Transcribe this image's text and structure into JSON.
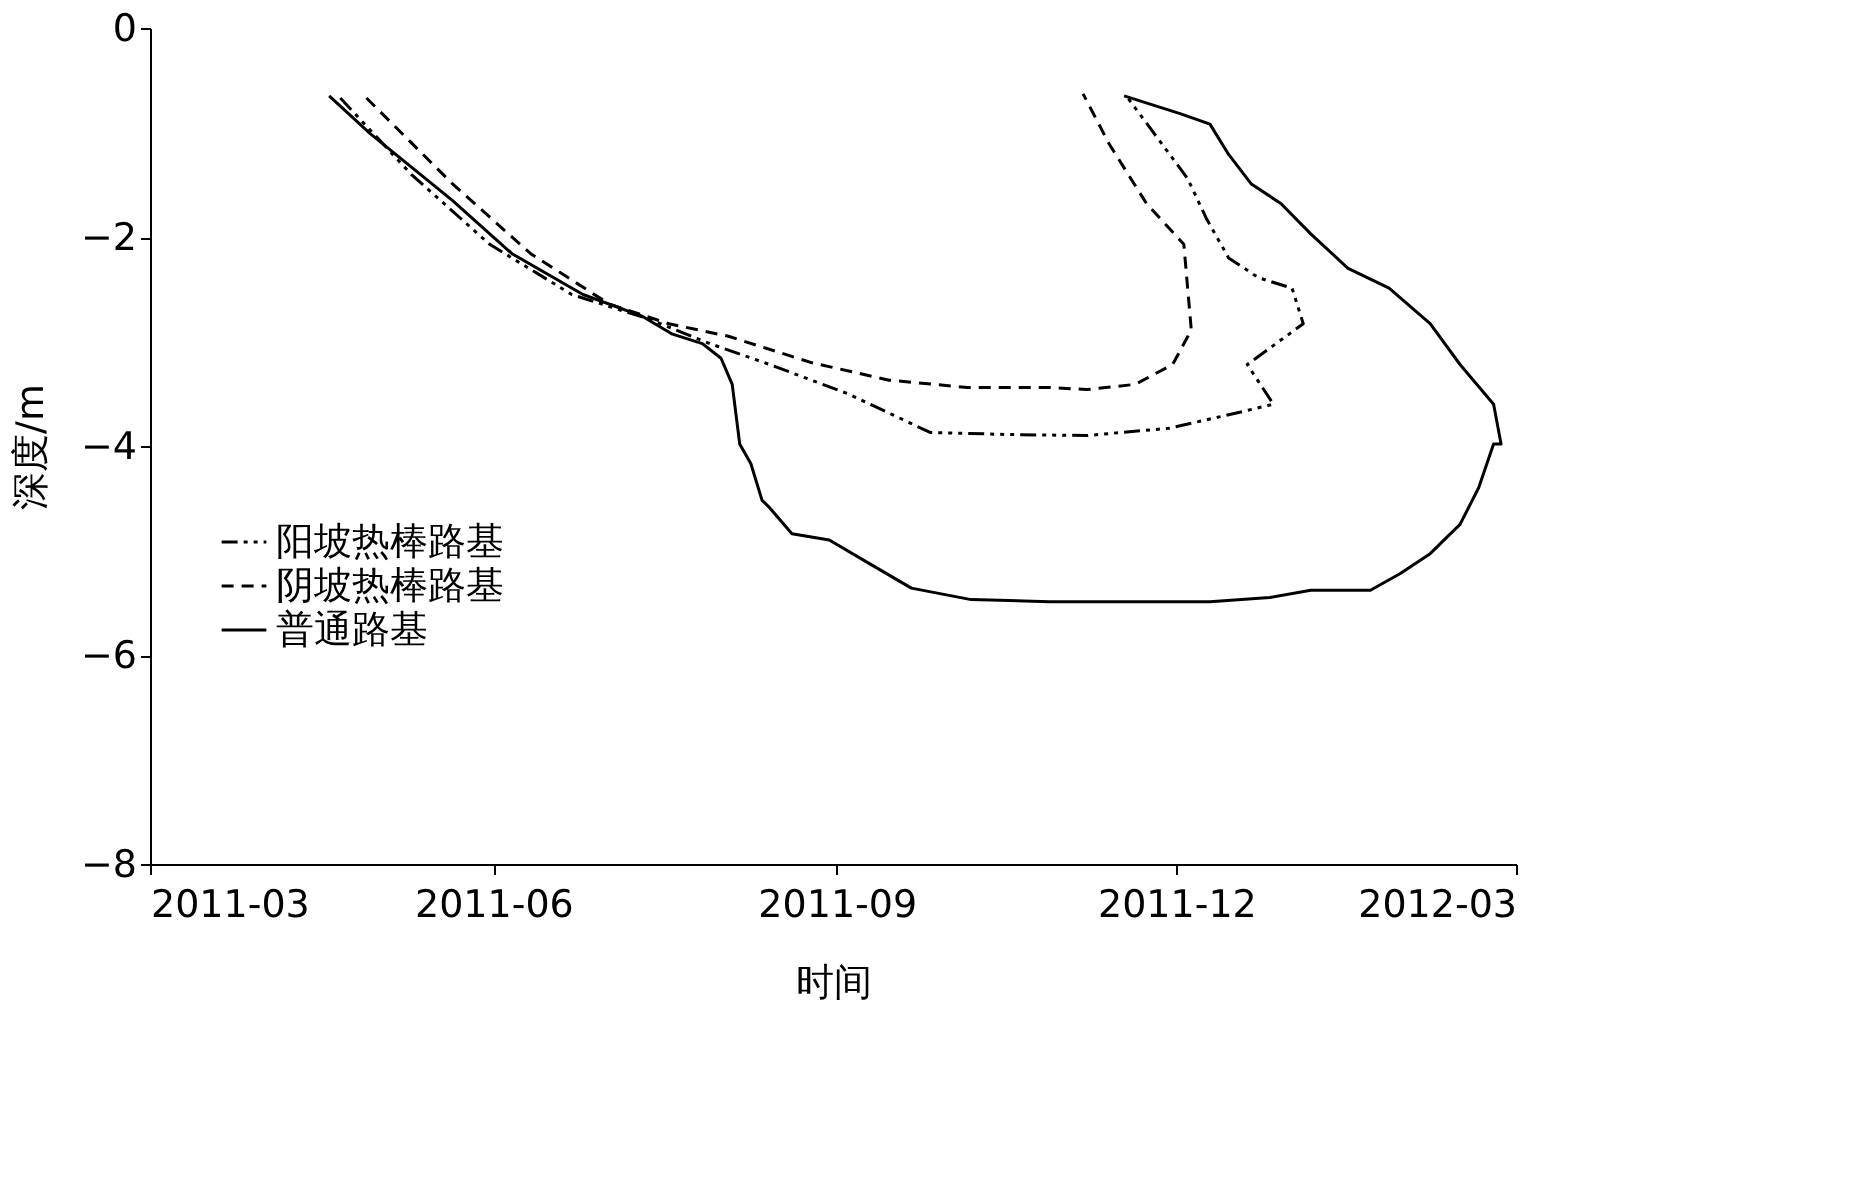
{
  "chart_data": {
    "type": "line",
    "xlabel": "时间",
    "ylabel": "深度/m",
    "xlim": [
      "2011-03",
      "2012-03"
    ],
    "xticks": [
      "2011-03",
      "2011-06",
      "2011-09",
      "2011-12",
      "2012-03"
    ],
    "ylim": [
      -8,
      0
    ],
    "yticks": [
      0,
      -2,
      -4,
      -6,
      -8
    ],
    "grid": false,
    "legend": "left",
    "marker": "none",
    "series": [
      {
        "name": "阳坡热棒路基",
        "color": "#000000",
        "line_style": "dashdotdot",
        "x": [
          "2011-04-21",
          "2011-05-10",
          "2011-05-31",
          "2011-06-22",
          "2011-07-13",
          "2011-07-29",
          "2011-08-14",
          "2011-09-04",
          "2011-09-26",
          "2011-10-17",
          "2011-11-07",
          "2011-11-29",
          "2011-12-09",
          "2011-12-20",
          "2011-12-27",
          "2011-12-20",
          "2012-01-04",
          "2012-01-01",
          "2011-12-23",
          "2011-12-15",
          "2011-12-09",
          "2011-12-04",
          "2011-11-18"
        ],
        "values": [
          -0.67,
          -1.4,
          -2.07,
          -2.55,
          -2.79,
          -3.02,
          -3.22,
          -3.5,
          -3.87,
          -3.89,
          -3.9,
          -3.83,
          -3.75,
          -3.66,
          -3.6,
          -3.22,
          -2.83,
          -2.49,
          -2.39,
          -2.2,
          -1.82,
          -1.44,
          -0.67
        ]
      },
      {
        "name": "阴坡热棒路基",
        "color": "#000000",
        "line_style": "dashed",
        "x": [
          "2011-04-28",
          "2011-05-21",
          "2011-06-11",
          "2011-07-02",
          "2011-07-18",
          "2011-08-03",
          "2011-08-25",
          "2011-09-15",
          "2011-10-06",
          "2011-10-28",
          "2011-11-07",
          "2011-11-20",
          "2011-11-30",
          "2011-12-05",
          "2011-12-03",
          "2011-11-23",
          "2011-11-13",
          "2011-11-06"
        ],
        "values": [
          -0.67,
          -1.49,
          -2.16,
          -2.64,
          -2.83,
          -2.95,
          -3.2,
          -3.37,
          -3.44,
          -3.44,
          -3.46,
          -3.41,
          -3.22,
          -2.89,
          -2.07,
          -1.68,
          -1.11,
          -0.63
        ]
      },
      {
        "name": "普通路基",
        "color": "#000000",
        "line_style": "solid",
        "x": [
          "2011-04-18",
          "2011-04-29",
          "2011-05-21",
          "2011-06-06",
          "2011-06-25",
          "2011-07-11",
          "2011-07-19",
          "2011-07-27",
          "2011-08-01",
          "2011-08-04",
          "2011-08-06",
          "2011-08-09",
          "2011-08-12",
          "2011-08-14",
          "2011-08-20",
          "2011-08-30",
          "2011-09-10",
          "2011-09-21",
          "2011-10-07",
          "2011-10-28",
          "2011-11-19",
          "2011-12-10",
          "2011-12-26",
          "2012-01-06",
          "2012-01-22",
          "2012-01-30",
          "2012-02-07",
          "2012-02-15",
          "2012-02-20",
          "2012-02-24",
          "2012-02-26",
          "2012-02-24",
          "2012-02-15",
          "2012-02-07",
          "2012-01-27",
          "2012-01-16",
          "2012-01-06",
          "2011-12-29",
          "2011-12-21",
          "2011-12-15",
          "2011-12-10",
          "2011-12-02",
          "2011-11-17"
        ],
        "values": [
          -0.65,
          -1.01,
          -1.65,
          -2.16,
          -2.55,
          -2.76,
          -2.93,
          -3.02,
          -3.16,
          -3.41,
          -3.98,
          -4.17,
          -4.52,
          -4.59,
          -4.84,
          -4.9,
          -5.13,
          -5.36,
          -5.47,
          -5.49,
          -5.49,
          -5.49,
          -5.45,
          -5.38,
          -5.38,
          -5.22,
          -5.03,
          -4.75,
          -4.4,
          -3.98,
          -3.98,
          -3.6,
          -3.22,
          -2.83,
          -2.49,
          -2.3,
          -1.97,
          -1.68,
          -1.49,
          -1.21,
          -0.92,
          -0.82,
          -0.65
        ]
      }
    ]
  }
}
